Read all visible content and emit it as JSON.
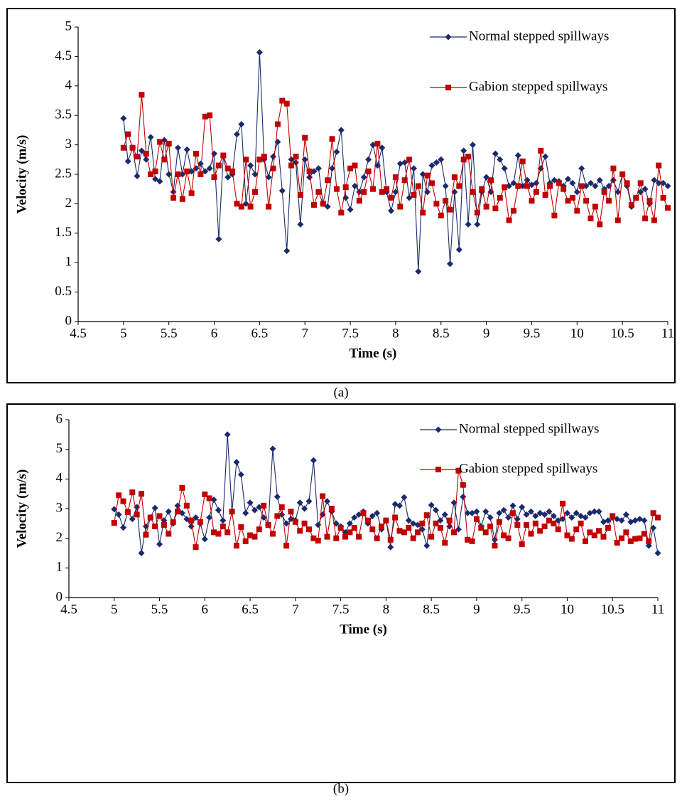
{
  "chart_data": [
    {
      "type": "line",
      "caption": "(a)",
      "x_label": "Time (s)",
      "y_label": "Velocity (m/s)",
      "legend": "upper right",
      "xlim": [
        4.5,
        11
      ],
      "xticks": [
        4.5,
        5,
        5.5,
        6,
        6.5,
        7,
        7.5,
        8,
        8.5,
        9,
        9.5,
        10,
        10.5,
        11
      ],
      "ylim": [
        0,
        5
      ],
      "yticks": [
        0,
        0.5,
        1,
        1.5,
        2,
        2.5,
        3,
        3.5,
        4,
        4.5,
        5
      ],
      "x": [
        5,
        5.05,
        5.1,
        5.15,
        5.2,
        5.25,
        5.3,
        5.35,
        5.4,
        5.45,
        5.5,
        5.55,
        5.6,
        5.65,
        5.7,
        5.75,
        5.8,
        5.85,
        5.9,
        5.95,
        6,
        6.05,
        6.1,
        6.15,
        6.2,
        6.25,
        6.3,
        6.35,
        6.4,
        6.45,
        6.5,
        6.55,
        6.6,
        6.65,
        6.7,
        6.75,
        6.8,
        6.85,
        6.9,
        6.95,
        7,
        7.05,
        7.1,
        7.15,
        7.2,
        7.25,
        7.3,
        7.35,
        7.4,
        7.45,
        7.5,
        7.55,
        7.6,
        7.65,
        7.7,
        7.75,
        7.8,
        7.85,
        7.9,
        7.95,
        8,
        8.05,
        8.1,
        8.15,
        8.2,
        8.25,
        8.3,
        8.35,
        8.4,
        8.45,
        8.5,
        8.55,
        8.6,
        8.65,
        8.7,
        8.75,
        8.8,
        8.85,
        8.9,
        8.95,
        9,
        9.05,
        9.1,
        9.15,
        9.2,
        9.25,
        9.3,
        9.35,
        9.4,
        9.45,
        9.5,
        9.55,
        9.6,
        9.65,
        9.7,
        9.75,
        9.8,
        9.85,
        9.9,
        9.95,
        10,
        10.05,
        10.1,
        10.15,
        10.2,
        10.25,
        10.3,
        10.35,
        10.4,
        10.45,
        10.5,
        10.55,
        10.6,
        10.65,
        10.7,
        10.75,
        10.8,
        10.85,
        10.9,
        10.95,
        11
      ],
      "series": [
        {
          "name": "Normal stepped spillways",
          "color": "#1b2a6b",
          "marker": "diamond",
          "values": [
            3.45,
            2.72,
            2.95,
            2.47,
            2.9,
            2.75,
            3.13,
            2.42,
            2.38,
            3.08,
            2.5,
            2.2,
            2.95,
            2.5,
            2.92,
            2.55,
            2.6,
            2.68,
            2.55,
            2.6,
            2.85,
            1.4,
            2.8,
            2.45,
            2.5,
            3.18,
            3.35,
            2.0,
            2.65,
            2.5,
            4.57,
            2.75,
            2.45,
            2.8,
            3.05,
            2.22,
            1.2,
            2.75,
            2.7,
            1.65,
            2.75,
            2.45,
            2.55,
            2.6,
            2.0,
            1.95,
            2.6,
            2.88,
            3.25,
            2.1,
            1.9,
            2.3,
            2.2,
            2.45,
            2.75,
            3.0,
            2.65,
            2.95,
            2.2,
            1.88,
            2.2,
            2.68,
            2.7,
            2.1,
            2.6,
            0.85,
            2.5,
            2.2,
            2.65,
            2.7,
            2.75,
            2.3,
            0.98,
            2.2,
            1.22,
            2.9,
            1.65,
            3.0,
            1.65,
            2.2,
            2.45,
            2.2,
            2.85,
            2.75,
            2.6,
            2.3,
            2.35,
            2.82,
            2.3,
            2.4,
            2.32,
            2.35,
            2.6,
            2.8,
            2.35,
            2.4,
            2.38,
            2.3,
            2.42,
            2.35,
            2.2,
            2.6,
            2.3,
            2.35,
            2.3,
            2.4,
            2.25,
            2.3,
            2.4,
            2.2,
            2.5,
            2.3,
            1.95,
            2.1,
            2.2,
            2.25,
            2.0,
            2.4,
            2.35,
            2.35,
            2.3
          ]
        },
        {
          "name": "Gabion stepped spillways",
          "color": "#c00000",
          "marker": "square",
          "values": [
            2.95,
            3.18,
            2.95,
            2.8,
            3.85,
            2.85,
            2.5,
            2.55,
            3.05,
            2.75,
            3.02,
            2.1,
            2.5,
            2.08,
            2.55,
            2.18,
            2.85,
            2.5,
            3.48,
            3.5,
            2.45,
            2.65,
            2.82,
            2.6,
            2.55,
            2.0,
            1.95,
            2.75,
            1.95,
            2.2,
            2.75,
            2.8,
            1.95,
            2.6,
            3.35,
            3.75,
            3.7,
            2.65,
            2.8,
            2.15,
            3.12,
            2.55,
            1.98,
            2.2,
            2.0,
            2.4,
            3.1,
            2.25,
            1.85,
            2.28,
            2.6,
            2.65,
            2.05,
            2.2,
            2.55,
            2.25,
            3.02,
            2.2,
            2.25,
            2.1,
            2.45,
            1.95,
            2.4,
            2.75,
            2.15,
            2.3,
            1.85,
            2.48,
            2.35,
            2.0,
            1.8,
            2.05,
            1.9,
            2.45,
            2.3,
            2.75,
            2.8,
            2.2,
            1.85,
            2.25,
            1.95,
            2.4,
            1.92,
            2.1,
            2.28,
            1.72,
            1.88,
            2.3,
            2.72,
            2.3,
            2.05,
            2.2,
            2.9,
            2.15,
            2.3,
            1.8,
            2.35,
            2.25,
            2.05,
            2.1,
            1.88,
            2.3,
            2.05,
            1.75,
            1.95,
            1.65,
            2.2,
            2.05,
            2.6,
            1.72,
            2.5,
            2.35,
            1.98,
            2.1,
            2.35,
            1.75,
            2.05,
            1.72,
            2.65,
            2.1,
            1.93
          ]
        }
      ]
    },
    {
      "type": "line",
      "caption": "(b)",
      "x_label": "Time (s)",
      "y_label": "Velocity (m/s)",
      "legend": "upper right",
      "xlim": [
        4.5,
        11
      ],
      "xticks": [
        4.5,
        5,
        5.5,
        6,
        6.5,
        7,
        7.5,
        8,
        8.5,
        9,
        9.5,
        10,
        10.5,
        11
      ],
      "ylim": [
        0,
        6
      ],
      "yticks": [
        0,
        1,
        2,
        3,
        4,
        5,
        6
      ],
      "x": [
        5,
        5.05,
        5.1,
        5.15,
        5.2,
        5.25,
        5.3,
        5.35,
        5.4,
        5.45,
        5.5,
        5.55,
        5.6,
        5.65,
        5.7,
        5.75,
        5.8,
        5.85,
        5.9,
        5.95,
        6,
        6.05,
        6.1,
        6.15,
        6.2,
        6.25,
        6.3,
        6.35,
        6.4,
        6.45,
        6.5,
        6.55,
        6.6,
        6.65,
        6.7,
        6.75,
        6.8,
        6.85,
        6.9,
        6.95,
        7,
        7.05,
        7.1,
        7.15,
        7.2,
        7.25,
        7.3,
        7.35,
        7.4,
        7.45,
        7.5,
        7.55,
        7.6,
        7.65,
        7.7,
        7.75,
        7.8,
        7.85,
        7.9,
        7.95,
        8,
        8.05,
        8.1,
        8.15,
        8.2,
        8.25,
        8.3,
        8.35,
        8.4,
        8.45,
        8.5,
        8.55,
        8.6,
        8.65,
        8.7,
        8.75,
        8.8,
        8.85,
        8.9,
        8.95,
        9,
        9.05,
        9.1,
        9.15,
        9.2,
        9.25,
        9.3,
        9.35,
        9.4,
        9.45,
        9.5,
        9.55,
        9.6,
        9.65,
        9.7,
        9.75,
        9.8,
        9.85,
        9.9,
        9.95,
        10,
        10.05,
        10.1,
        10.15,
        10.2,
        10.25,
        10.3,
        10.35,
        10.4,
        10.45,
        10.5,
        10.55,
        10.6,
        10.65,
        10.7,
        10.75,
        10.8,
        10.85,
        10.9,
        10.95,
        11
      ],
      "series": [
        {
          "name": "Normal stepped spillways",
          "color": "#1b2a6b",
          "marker": "diamond",
          "values": [
            2.98,
            2.8,
            2.36,
            2.9,
            2.65,
            3.05,
            1.5,
            2.4,
            2.7,
            3.02,
            1.8,
            2.6,
            2.9,
            2.5,
            3.1,
            2.85,
            2.65,
            2.4,
            2.7,
            2.5,
            1.97,
            2.7,
            3.3,
            2.95,
            2.6,
            5.5,
            2.9,
            4.57,
            4.15,
            2.85,
            3.2,
            2.95,
            3.05,
            2.7,
            2.45,
            5.02,
            3.4,
            2.8,
            2.5,
            2.65,
            2.6,
            3.2,
            3.0,
            3.25,
            4.63,
            2.45,
            2.8,
            3.25,
            2.9,
            2.5,
            2.4,
            2.2,
            2.5,
            2.7,
            2.8,
            2.9,
            2.5,
            2.75,
            2.85,
            2.3,
            2.6,
            1.7,
            3.15,
            3.1,
            3.38,
            2.6,
            2.5,
            2.45,
            2.3,
            1.75,
            3.12,
            2.95,
            2.6,
            2.8,
            2.4,
            3.2,
            2.3,
            3.4,
            2.85,
            2.85,
            2.9,
            2.4,
            2.9,
            2.7,
            1.95,
            2.85,
            2.95,
            2.7,
            3.1,
            2.65,
            3.05,
            2.8,
            2.9,
            2.75,
            2.85,
            2.8,
            2.9,
            2.75,
            2.6,
            2.65,
            2.85,
            2.7,
            2.85,
            2.75,
            2.7,
            2.85,
            2.9,
            2.9,
            2.55,
            2.6,
            2.7,
            2.65,
            2.6,
            2.8,
            2.55,
            2.6,
            2.65,
            2.6,
            1.75,
            2.35,
            1.5
          ]
        },
        {
          "name": "Gabion stepped spillways",
          "color": "#c00000",
          "marker": "square",
          "values": [
            2.52,
            3.45,
            3.25,
            2.88,
            3.55,
            2.8,
            3.5,
            2.12,
            2.7,
            2.4,
            2.75,
            2.45,
            2.15,
            2.55,
            2.9,
            3.7,
            3.1,
            2.6,
            1.7,
            2.55,
            3.48,
            3.35,
            2.2,
            2.15,
            2.4,
            2.2,
            2.9,
            1.75,
            2.38,
            1.9,
            2.1,
            2.05,
            2.3,
            3.1,
            2.45,
            2.15,
            2.75,
            3.05,
            1.75,
            2.9,
            2.55,
            2.25,
            2.5,
            2.3,
            2.0,
            1.92,
            3.42,
            2.05,
            3.0,
            2.0,
            2.35,
            2.05,
            2.2,
            2.35,
            2.05,
            2.85,
            2.6,
            2.3,
            2.0,
            2.4,
            2.6,
            1.95,
            2.7,
            2.25,
            2.2,
            2.35,
            2.0,
            2.2,
            2.5,
            2.78,
            2.05,
            2.5,
            2.35,
            1.85,
            2.6,
            2.2,
            4.28,
            3.8,
            1.95,
            1.9,
            2.65,
            2.35,
            2.2,
            2.4,
            1.75,
            2.55,
            2.1,
            2.0,
            2.85,
            2.45,
            1.8,
            2.45,
            2.15,
            2.5,
            2.25,
            2.4,
            2.6,
            2.5,
            2.3,
            3.17,
            2.1,
            1.98,
            2.3,
            2.5,
            1.9,
            2.2,
            2.1,
            2.25,
            2.05,
            2.35,
            2.75,
            1.85,
            2.0,
            2.2,
            1.9,
            1.98,
            2.0,
            2.15,
            1.9,
            2.85,
            2.7
          ]
        }
      ]
    }
  ]
}
